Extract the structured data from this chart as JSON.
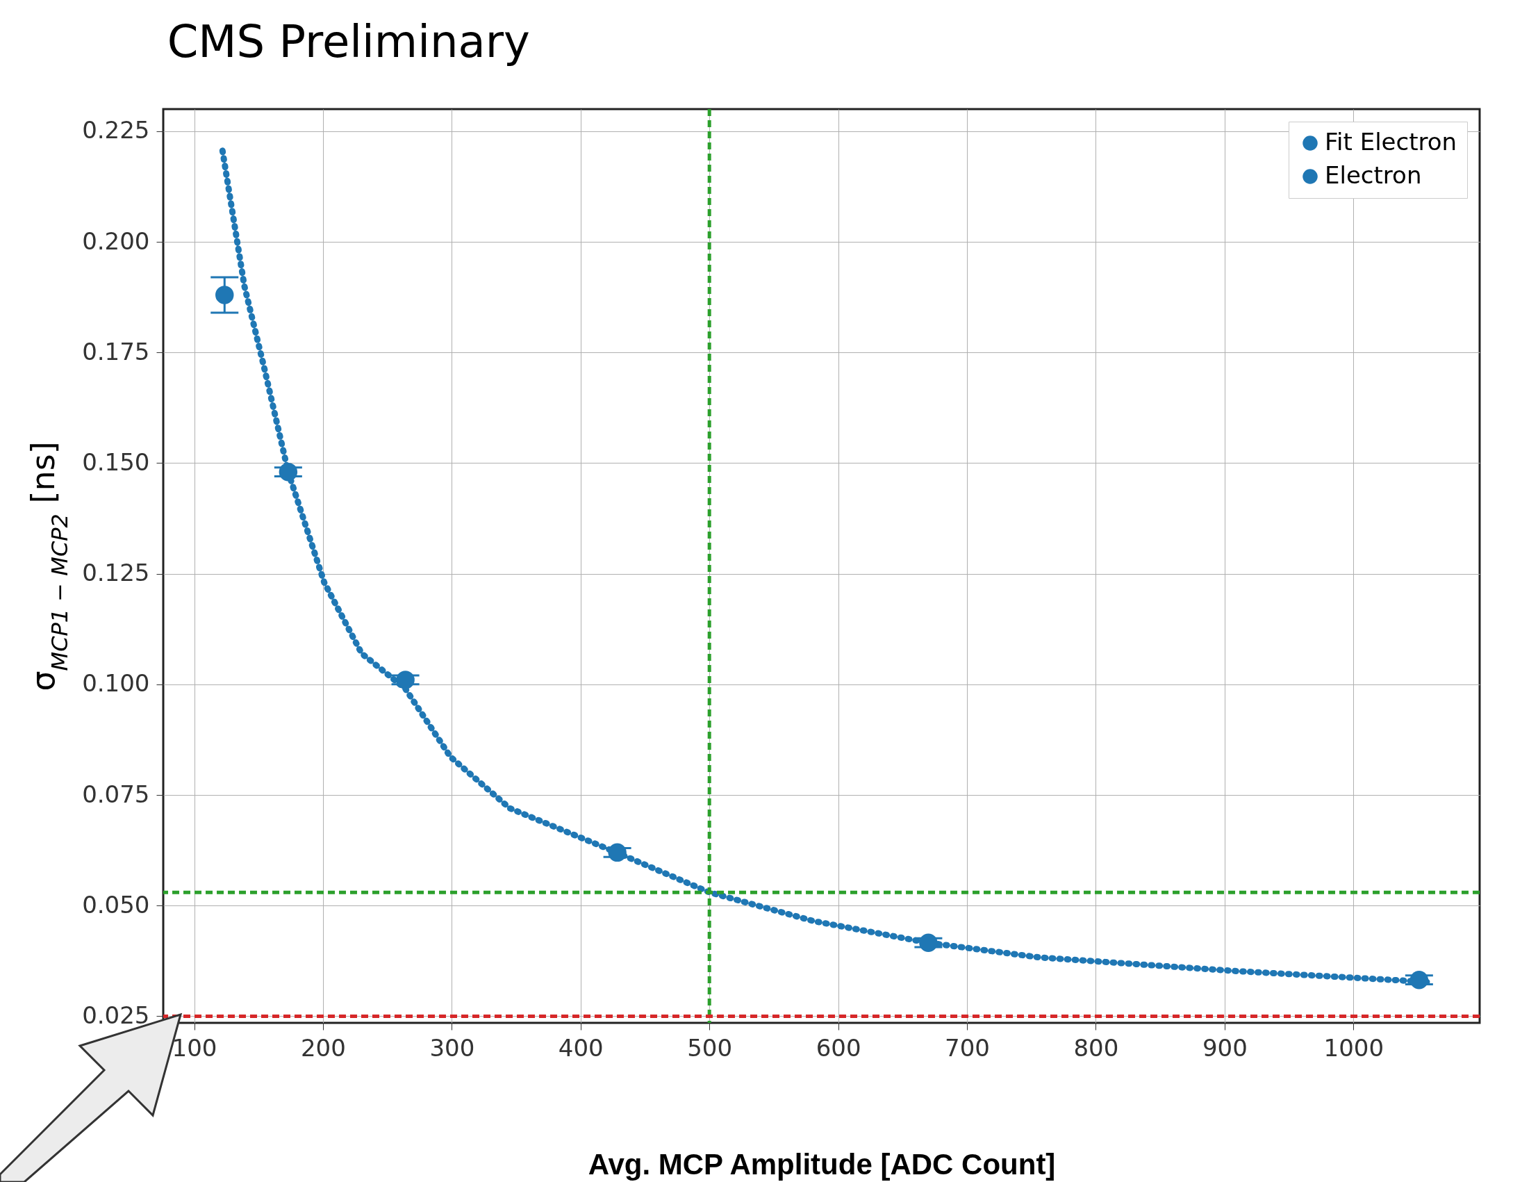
{
  "chart_data": {
    "type": "scatter",
    "title": "CMS Preliminary",
    "xlabel": "Avg. MCP Amplitude [ADC Count]",
    "ylabel": "σ$_{MCP1 − MCP2}$ [ns]",
    "xlim": [
      76,
      1098
    ],
    "xticks": [
      100,
      200,
      300,
      400,
      500,
      600,
      700,
      800,
      900,
      1000
    ],
    "ylim": [
      0.0235,
      0.23
    ],
    "yticks": [
      {
        "value": 0.025,
        "label": "0.025"
      },
      {
        "value": 0.05,
        "label": "0.050"
      },
      {
        "value": 0.075,
        "label": "0.075"
      },
      {
        "value": 0.1,
        "label": "0.100"
      },
      {
        "value": 0.125,
        "label": "0.125"
      },
      {
        "value": 0.15,
        "label": "0.150"
      },
      {
        "value": 0.175,
        "label": "0.175"
      },
      {
        "value": 0.2,
        "label": "0.200"
      },
      {
        "value": 0.225,
        "label": "0.225"
      }
    ],
    "grid": true,
    "legend": "top right",
    "series": [
      {
        "name": "Fit Electron",
        "type": "line",
        "color": "#1f77b4",
        "line_style": "dotted",
        "marker": "none",
        "x": [
          122,
          139,
          154,
          173,
          201,
          230,
          264,
          299,
          345,
          428,
          500,
          581,
          670,
          756,
          909,
          1061
        ],
        "values": [
          0.2206,
          0.19,
          0.172,
          0.148,
          0.123,
          0.107,
          0.099,
          0.0836,
          0.072,
          0.062,
          0.053,
          0.0465,
          0.0416,
          0.0383,
          0.0352,
          0.0327
        ]
      },
      {
        "name": "Electron",
        "type": "scatter",
        "color": "#1f77b4",
        "marker": "circle",
        "x": [
          123.6,
          173,
          264,
          428.5,
          670,
          1051
        ],
        "values": [
          0.188,
          0.148,
          0.101,
          0.062,
          0.0416,
          0.0332
        ],
        "errors": [
          0.004,
          0.001,
          0.001,
          0.001,
          0.001,
          0.001
        ]
      }
    ],
    "ref_lines": [
      {
        "axis": "x",
        "value": 500,
        "color": "#2ca02c",
        "line_style": "dashed"
      },
      {
        "axis": "y",
        "value": 0.053,
        "color": "#2ca02c",
        "line_style": "dashed"
      },
      {
        "axis": "y",
        "value": 0.025,
        "color": "#d62728",
        "line_style": "dashed"
      }
    ]
  }
}
